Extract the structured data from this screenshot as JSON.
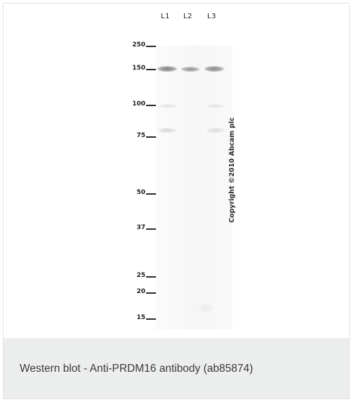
{
  "blot": {
    "lanes": [
      "L1",
      "L2",
      "L3"
    ],
    "markers": [
      {
        "label": "250",
        "kda": 250
      },
      {
        "label": "150",
        "kda": 150
      },
      {
        "label": "100",
        "kda": 100
      },
      {
        "label": "75",
        "kda": 75
      },
      {
        "label": "50",
        "kda": 50
      },
      {
        "label": "37",
        "kda": 37
      },
      {
        "label": "25",
        "kda": 25
      },
      {
        "label": "20",
        "kda": 20
      },
      {
        "label": "15",
        "kda": 15
      }
    ],
    "copyright": "Copyright ©2010 Abcam plc"
  },
  "caption": "Western blot - Anti-PRDM16 antibody (ab85874)"
}
